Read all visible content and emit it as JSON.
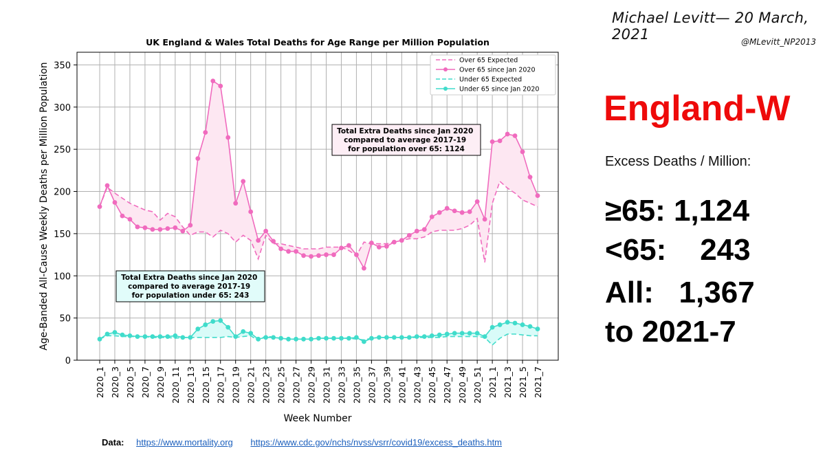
{
  "header": {
    "credit": "Michael Levitt— 20 March, 2021",
    "handle": "@MLevitt_NP2013"
  },
  "summary": {
    "region": "England-W",
    "excess_label": "Excess Deaths / Million:",
    "lines": [
      "≥65: 1,124",
      "<65:    243",
      "All:   1,367",
      "to 2021-7"
    ]
  },
  "footer": {
    "data_label": "Data:",
    "links": [
      "https://www.mortality.org",
      "https://www.cdc.gov/nchs/nvss/vsrr/covid19/excess_deaths.htm"
    ]
  },
  "colors": {
    "over65": "#f06bbe",
    "under65": "#40dccb",
    "over65_fill": "#fde7f2",
    "under65_fill": "#d9fbf8"
  },
  "chart_data": {
    "type": "line",
    "title": "UK England & Wales Total Deaths for Age Range per Million Population",
    "xlabel": "Week Number",
    "ylabel": "Age-Banded All-Cause Weekly Deaths per Million Population",
    "ylim": [
      0,
      365
    ],
    "yticks": [
      0,
      50,
      100,
      150,
      200,
      250,
      300,
      350
    ],
    "grid": true,
    "legend_position": "top-right",
    "x": [
      "2020_1",
      "2020_2",
      "2020_3",
      "2020_4",
      "2020_5",
      "2020_6",
      "2020_7",
      "2020_8",
      "2020_9",
      "2020_10",
      "2020_11",
      "2020_12",
      "2020_13",
      "2020_14",
      "2020_15",
      "2020_16",
      "2020_17",
      "2020_18",
      "2020_19",
      "2020_20",
      "2020_21",
      "2020_22",
      "2020_23",
      "2020_24",
      "2020_25",
      "2020_26",
      "2020_27",
      "2020_28",
      "2020_29",
      "2020_30",
      "2020_31",
      "2020_32",
      "2020_33",
      "2020_34",
      "2020_35",
      "2020_36",
      "2020_37",
      "2020_38",
      "2020_39",
      "2020_40",
      "2020_41",
      "2020_42",
      "2020_43",
      "2020_44",
      "2020_45",
      "2020_46",
      "2020_47",
      "2020_48",
      "2020_49",
      "2020_50",
      "2020_51",
      "2020_52",
      "2021_1",
      "2021_2",
      "2021_3",
      "2021_4",
      "2021_5",
      "2021_6",
      "2021_7"
    ],
    "xticks_shown": [
      "2020_1",
      "2020_3",
      "2020_5",
      "2020_7",
      "2020_9",
      "2020_11",
      "2020_13",
      "2020_15",
      "2020_17",
      "2020_19",
      "2020_21",
      "2020_23",
      "2020_25",
      "2020_27",
      "2020_29",
      "2020_31",
      "2020_33",
      "2020_35",
      "2020_37",
      "2020_39",
      "2020_41",
      "2020_43",
      "2020_45",
      "2020_47",
      "2020_49",
      "2020_51",
      "2021_1",
      "2021_3",
      "2021_5",
      "2021_7"
    ],
    "series": [
      {
        "name": "Over 65 Expected",
        "style": "dashed",
        "color": "#f06bbe",
        "values": [
          182,
          205,
          198,
          192,
          186,
          182,
          178,
          176,
          166,
          174,
          170,
          158,
          148,
          152,
          152,
          146,
          154,
          150,
          140,
          148,
          142,
          120,
          148,
          138,
          138,
          136,
          134,
          132,
          132,
          132,
          134,
          134,
          134,
          130,
          124,
          140,
          138,
          138,
          138,
          140,
          142,
          144,
          144,
          146,
          152,
          154,
          154,
          154,
          156,
          160,
          168,
          116,
          186,
          212,
          204,
          198,
          190,
          186,
          182
        ]
      },
      {
        "name": "Over 65 since Jan 2020",
        "style": "solid-marker",
        "color": "#f06bbe",
        "values": [
          182,
          207,
          187,
          171,
          167,
          158,
          157,
          155,
          155,
          156,
          157,
          153,
          160,
          239,
          270,
          331,
          325,
          264,
          186,
          212,
          176,
          142,
          153,
          141,
          132,
          129,
          129,
          124,
          123,
          124,
          125,
          125,
          133,
          136,
          125,
          109,
          139,
          134,
          135,
          140,
          142,
          148,
          153,
          155,
          170,
          175,
          180,
          177,
          175,
          176,
          188,
          167,
          259,
          260,
          268,
          266,
          247,
          217,
          195
        ]
      },
      {
        "name": "Under 65 Expected",
        "style": "dashed",
        "color": "#40dccb",
        "values": [
          25,
          29,
          29,
          28,
          28,
          28,
          28,
          27,
          27,
          27,
          26,
          27,
          27,
          27,
          27,
          27,
          27,
          28,
          27,
          28,
          29,
          23,
          29,
          27,
          26,
          25,
          25,
          25,
          25,
          26,
          26,
          26,
          26,
          26,
          25,
          24,
          26,
          27,
          27,
          27,
          27,
          27,
          27,
          27,
          27,
          27,
          28,
          28,
          28,
          28,
          28,
          27,
          18,
          26,
          31,
          31,
          30,
          29,
          29
        ]
      },
      {
        "name": "Under 65 since Jan 2020",
        "style": "solid-marker",
        "color": "#40dccb",
        "values": [
          25,
          31,
          33,
          30,
          29,
          28,
          28,
          28,
          28,
          28,
          29,
          27,
          27,
          37,
          42,
          46,
          47,
          39,
          28,
          34,
          32,
          25,
          27,
          27,
          26,
          25,
          25,
          25,
          25,
          26,
          26,
          26,
          26,
          26,
          27,
          22,
          26,
          27,
          27,
          27,
          27,
          27,
          28,
          28,
          29,
          30,
          31,
          32,
          32,
          32,
          32,
          28,
          39,
          42,
          45,
          44,
          42,
          40,
          37
        ]
      }
    ],
    "annotations": [
      {
        "lines": [
          "Total Extra Deaths since Jan 2020",
          "compared to average 2017-19",
          "for population over 65: 1124"
        ],
        "style": "pink"
      },
      {
        "lines": [
          "Total Extra Deaths since Jan 2020",
          "compared to average 2017-19",
          "for population under 65: 243"
        ],
        "style": "cyan"
      }
    ]
  }
}
